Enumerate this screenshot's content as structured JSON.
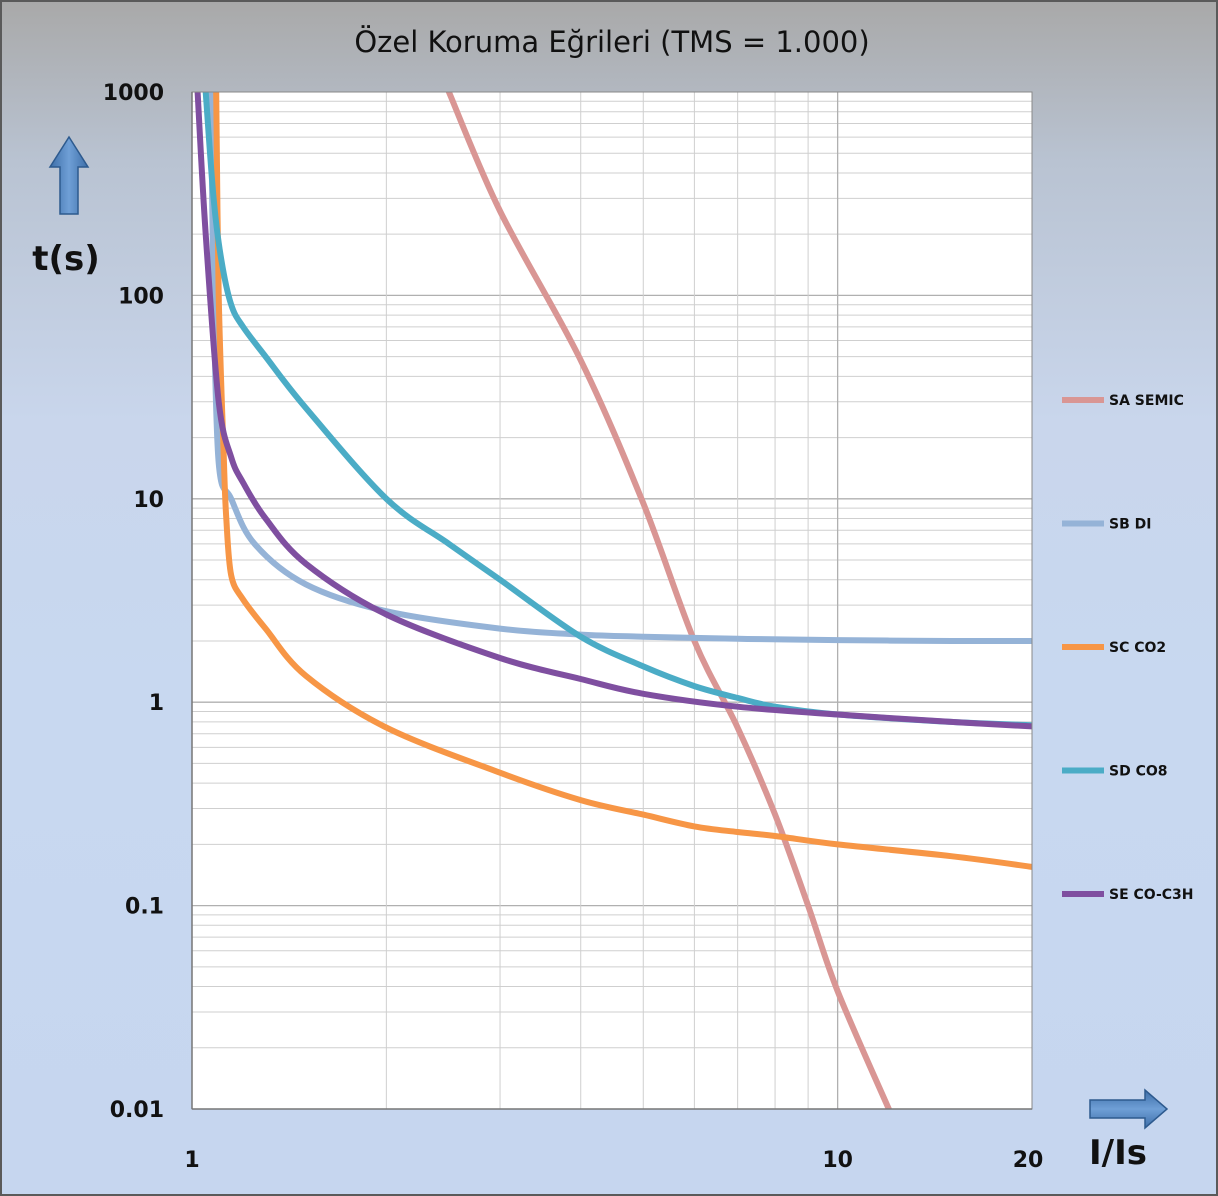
{
  "chart_data": {
    "type": "line",
    "title": "Özel Koruma Eğrileri (TMS = 1.000)",
    "xlabel": "I/Is",
    "ylabel": "t(s)",
    "xscale": "log",
    "yscale": "log",
    "xlim": [
      1,
      20
    ],
    "ylim": [
      0.01,
      1000
    ],
    "x_tick_labels": [
      "1",
      "10",
      "20"
    ],
    "y_tick_labels": [
      "1000",
      "100",
      "10",
      "1",
      "0.1",
      "0.01"
    ],
    "grid": true,
    "legend": "right",
    "series": [
      {
        "name": "SA SEMIC",
        "color": "#d99694",
        "points": [
          [
            2.5,
            1000
          ],
          [
            3.0,
            260
          ],
          [
            4.0,
            48
          ],
          [
            5.0,
            9.5
          ],
          [
            6.0,
            2.0
          ],
          [
            7.0,
            0.75
          ],
          [
            8.0,
            0.28
          ],
          [
            9.0,
            0.1
          ],
          [
            10.0,
            0.038
          ],
          [
            12.0,
            0.01
          ]
        ]
      },
      {
        "name": "SB DI",
        "color": "#95b3d7",
        "points": [
          [
            1.07,
            1000
          ],
          [
            1.08,
            100
          ],
          [
            1.1,
            15
          ],
          [
            1.15,
            10
          ],
          [
            1.25,
            6
          ],
          [
            1.5,
            3.8
          ],
          [
            2.0,
            2.8
          ],
          [
            3.0,
            2.3
          ],
          [
            4.0,
            2.15
          ],
          [
            5.0,
            2.1
          ],
          [
            7.0,
            2.05
          ],
          [
            10.0,
            2.02
          ],
          [
            15.0,
            2.0
          ],
          [
            20.0,
            2.0
          ]
        ]
      },
      {
        "name": "SC CO2",
        "color": "#f79646",
        "points": [
          [
            1.09,
            1000
          ],
          [
            1.1,
            100
          ],
          [
            1.12,
            16
          ],
          [
            1.13,
            8
          ],
          [
            1.15,
            4.2
          ],
          [
            1.2,
            3.2
          ],
          [
            1.3,
            2.3
          ],
          [
            1.5,
            1.35
          ],
          [
            2.0,
            0.75
          ],
          [
            3.0,
            0.45
          ],
          [
            4.0,
            0.33
          ],
          [
            5.0,
            0.28
          ],
          [
            6.0,
            0.245
          ],
          [
            7.0,
            0.23
          ],
          [
            8.0,
            0.22
          ],
          [
            10.0,
            0.2
          ],
          [
            15.0,
            0.175
          ],
          [
            20.0,
            0.155
          ]
        ]
      },
      {
        "name": "SD CO8",
        "color": "#4bacc6",
        "points": [
          [
            1.05,
            1000
          ],
          [
            1.08,
            300
          ],
          [
            1.11,
            150
          ],
          [
            1.15,
            90
          ],
          [
            1.2,
            70
          ],
          [
            1.3,
            50
          ],
          [
            1.5,
            28
          ],
          [
            2.0,
            10
          ],
          [
            2.5,
            6
          ],
          [
            3.0,
            4
          ],
          [
            4.0,
            2.1
          ],
          [
            5.0,
            1.5
          ],
          [
            6.0,
            1.2
          ],
          [
            7.0,
            1.05
          ],
          [
            8.0,
            0.95
          ],
          [
            10.0,
            0.87
          ],
          [
            15.0,
            0.8
          ],
          [
            20.0,
            0.77
          ]
        ]
      },
      {
        "name": "SE CO-C3H",
        "color": "#7f4fa0",
        "points": [
          [
            1.02,
            1000
          ],
          [
            1.05,
            200
          ],
          [
            1.1,
            30
          ],
          [
            1.15,
            16
          ],
          [
            1.2,
            12
          ],
          [
            1.3,
            8
          ],
          [
            1.5,
            4.8
          ],
          [
            2.0,
            2.7
          ],
          [
            3.0,
            1.65
          ],
          [
            4.0,
            1.3
          ],
          [
            5.0,
            1.1
          ],
          [
            7.0,
            0.95
          ],
          [
            10.0,
            0.87
          ],
          [
            15.0,
            0.8
          ],
          [
            20.0,
            0.76
          ]
        ]
      }
    ]
  }
}
